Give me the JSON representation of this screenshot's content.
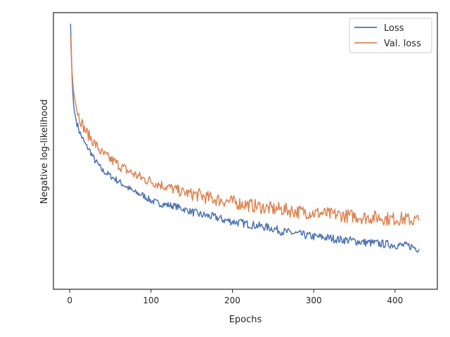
{
  "chart_data": {
    "type": "line",
    "title": "",
    "xlabel": "Epochs",
    "ylabel": "Negative log-likelihood",
    "xlim": [
      -20,
      452
    ],
    "ylim": [
      0,
      1
    ],
    "xticks": [
      0,
      100,
      200,
      300,
      400
    ],
    "yticks_shown": false,
    "grid": false,
    "legend_position": "top-right",
    "series": [
      {
        "name": "Loss",
        "color": "#4c72b0",
        "x": [
          1,
          2,
          3,
          4,
          5,
          6,
          8,
          10,
          12,
          15,
          18,
          20,
          25,
          30,
          35,
          40,
          45,
          50,
          55,
          60,
          70,
          80,
          90,
          100,
          110,
          120,
          130,
          140,
          150,
          160,
          170,
          180,
          190,
          200,
          210,
          220,
          230,
          240,
          250,
          260,
          270,
          280,
          290,
          300,
          310,
          320,
          330,
          340,
          350,
          360,
          370,
          380,
          390,
          400,
          410,
          420,
          425,
          430
        ],
        "y": [
          0.96,
          0.86,
          0.76,
          0.7,
          0.66,
          0.64,
          0.61,
          0.59,
          0.57,
          0.55,
          0.53,
          0.52,
          0.5,
          0.47,
          0.45,
          0.43,
          0.42,
          0.41,
          0.4,
          0.39,
          0.37,
          0.35,
          0.34,
          0.32,
          0.31,
          0.305,
          0.3,
          0.29,
          0.28,
          0.27,
          0.265,
          0.26,
          0.25,
          0.245,
          0.24,
          0.235,
          0.23,
          0.225,
          0.22,
          0.21,
          0.205,
          0.2,
          0.195,
          0.19,
          0.188,
          0.185,
          0.18,
          0.178,
          0.175,
          0.17,
          0.168,
          0.165,
          0.163,
          0.16,
          0.158,
          0.155,
          0.15,
          0.145
        ]
      },
      {
        "name": "Val. loss",
        "color": "#dd8452",
        "x": [
          1,
          2,
          3,
          4,
          5,
          6,
          8,
          10,
          12,
          15,
          18,
          20,
          25,
          30,
          35,
          40,
          45,
          50,
          55,
          60,
          70,
          80,
          90,
          100,
          110,
          120,
          130,
          140,
          150,
          160,
          170,
          180,
          190,
          200,
          210,
          220,
          230,
          240,
          250,
          260,
          270,
          280,
          290,
          300,
          310,
          320,
          330,
          340,
          350,
          360,
          370,
          380,
          390,
          400,
          410,
          420,
          425,
          430
        ],
        "y": [
          0.92,
          0.84,
          0.78,
          0.74,
          0.71,
          0.69,
          0.66,
          0.64,
          0.62,
          0.6,
          0.58,
          0.57,
          0.55,
          0.53,
          0.51,
          0.49,
          0.48,
          0.47,
          0.46,
          0.45,
          0.43,
          0.415,
          0.4,
          0.39,
          0.38,
          0.37,
          0.36,
          0.35,
          0.345,
          0.34,
          0.33,
          0.325,
          0.32,
          0.315,
          0.31,
          0.305,
          0.3,
          0.295,
          0.29,
          0.29,
          0.285,
          0.28,
          0.28,
          0.275,
          0.275,
          0.27,
          0.27,
          0.265,
          0.265,
          0.26,
          0.26,
          0.26,
          0.255,
          0.255,
          0.255,
          0.25,
          0.25,
          0.25
        ]
      }
    ]
  }
}
